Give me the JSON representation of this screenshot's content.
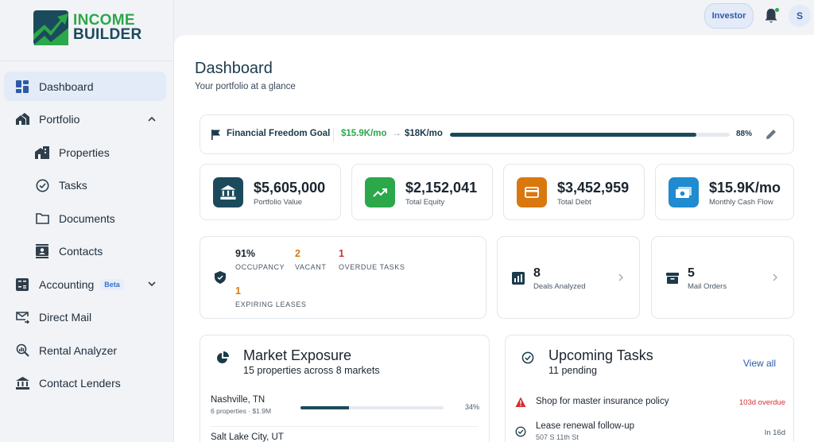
{
  "brand": {
    "line1": "INCOME",
    "line2": "BUILDER",
    "primary": "#2ba84a",
    "secondary": "#1b4a5c"
  },
  "topbar": {
    "role_button": "Investor",
    "avatar_initial": "S"
  },
  "sidebar": {
    "items": [
      {
        "label": "Dashboard",
        "icon": "grid-icon"
      },
      {
        "label": "Portfolio",
        "icon": "houses-icon"
      },
      {
        "label": "Properties",
        "icon": "building-icon"
      },
      {
        "label": "Tasks",
        "icon": "check-circle-icon"
      },
      {
        "label": "Documents",
        "icon": "folder-icon"
      },
      {
        "label": "Contacts",
        "icon": "contact-card-icon"
      },
      {
        "label": "Accounting",
        "icon": "calculator-icon",
        "badge": "Beta"
      },
      {
        "label": "Direct Mail",
        "icon": "mail-forward-icon"
      },
      {
        "label": "Rental Analyzer",
        "icon": "search-analytics-icon"
      },
      {
        "label": "Contact Lenders",
        "icon": "bank-icon"
      }
    ]
  },
  "page": {
    "title": "Dashboard",
    "subtitle": "Your portfolio at a glance"
  },
  "goal": {
    "label": "Financial Freedom Goal",
    "current": "$15.9K/mo",
    "arrow": "→",
    "target": "$18K/mo",
    "percent_text": "88%",
    "progress": 0.88
  },
  "stats": [
    {
      "value": "$5,605,000",
      "label": "Portfolio Value",
      "color": "#1b4a5c",
      "icon": "bank-icon"
    },
    {
      "value": "$2,152,041",
      "label": "Total Equity",
      "color": "#2ba84a",
      "icon": "trending-up-icon"
    },
    {
      "value": "$3,452,959",
      "label": "Total Debt",
      "color": "#d9780f",
      "icon": "credit-card-icon"
    },
    {
      "value": "$15.9K/mo",
      "label": "Monthly Cash Flow",
      "color": "#1f8bd0",
      "icon": "cash-icon"
    }
  ],
  "occupancy": {
    "occupancy_value": "91%",
    "occupancy_label": "OCCUPANCY",
    "vacant_value": "2",
    "vacant_label": "VACANT",
    "overdue_value": "1",
    "overdue_label": "OVERDUE TASKS",
    "expiring_value": "1",
    "expiring_label": "EXPIRING LEASES"
  },
  "mini_cards": [
    {
      "value": "8",
      "label": "Deals Analyzed",
      "icon": "bar-chart-icon"
    },
    {
      "value": "5",
      "label": "Mail Orders",
      "icon": "archive-icon"
    }
  ],
  "market": {
    "title": "Market Exposure",
    "subtitle": "15 properties across 8 markets",
    "rows": [
      {
        "name": "Nashville, TN",
        "meta": "6 properties · $1.9M",
        "percent_text": "34%",
        "share": 0.34
      },
      {
        "name": "Salt Lake City, UT",
        "meta": "",
        "percent_text": "",
        "share": 0
      }
    ]
  },
  "tasks": {
    "title": "Upcoming Tasks",
    "subtitle": "11 pending",
    "view_all": "View all",
    "rows": [
      {
        "title": "Shop for master insurance policy",
        "sub": "",
        "due": "103d overdue",
        "due_color": "#d32f2f",
        "icon": "warning-icon"
      },
      {
        "title": "Lease renewal follow-up",
        "sub": "507 S 11th St",
        "due": "In 16d",
        "due_color": "#4a5765",
        "icon": "check-circle-icon"
      }
    ]
  }
}
